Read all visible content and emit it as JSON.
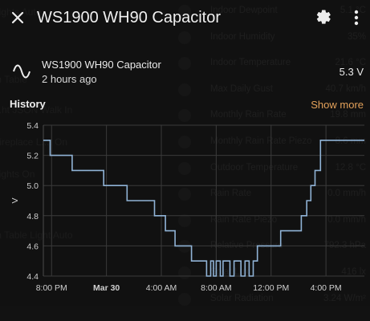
{
  "header": {
    "title": "WS1900 WH90 Capacitor"
  },
  "entity": {
    "name": "WS1900 WH90 Capacitor",
    "last_changed": "2 hours ago",
    "state": "5.3 V"
  },
  "history": {
    "label": "History",
    "show_more": "Show more"
  },
  "background": {
    "left_items": [
      {
        "label": "Lights Auto"
      },
      {
        "label": "m Table"
      },
      {
        "label": "...ht JSON Walk In"
      },
      {
        "label": "Fireplace L...t On"
      },
      {
        "label": "Lights On"
      },
      {
        "label": "m Table Light Auto"
      }
    ],
    "right_items": [
      {
        "name": "Indoor Dewpoint",
        "value": "5.1 °C"
      },
      {
        "name": "Indoor Humidity",
        "value": "35%"
      },
      {
        "name": "Indoor Temperature",
        "value": "21.6 °C"
      },
      {
        "name": "Max Daily Gust",
        "value": "40.7 km/h"
      },
      {
        "name": "Monthly Rain Rate",
        "value": "19.8 mm"
      },
      {
        "name": "Monthly Rain Rate Piezo",
        "value": "8.6 mm"
      },
      {
        "name": "Outdoor Temperature",
        "value": "12.8 °C"
      },
      {
        "name": "Rain Rate",
        "value": "0.0 mm/h"
      },
      {
        "name": "Rain Rate Piezo",
        "value": "0.0 mm/h"
      },
      {
        "name": "Relative Pressure",
        "value": "792.3 hPa"
      },
      {
        "name": "Solar Lux",
        "value": "416 lx"
      },
      {
        "name": "Solar Radiation",
        "value": "3.24 W/m²"
      }
    ]
  },
  "chart_data": {
    "type": "line",
    "title": "",
    "xlabel": "",
    "ylabel": "V",
    "ylim": [
      4.4,
      5.4
    ],
    "y_ticks": [
      "4.4",
      "4.6",
      "4.8",
      "5.0",
      "5.2",
      "5.4"
    ],
    "x_ticks": [
      "8:00 PM",
      "Mar 30",
      "4:00 AM",
      "8:00 AM",
      "12:00 PM",
      "4:00 PM"
    ],
    "x_ticks_hours": [
      0,
      4,
      8,
      12,
      16,
      20
    ],
    "x_range_hours": [
      -0.6,
      22.8
    ],
    "grid": true,
    "color": "#90b3d6",
    "series": [
      {
        "x_hours": [
          -0.6,
          -0.1,
          -0.1,
          1.5,
          1.5,
          3.8,
          3.8,
          5.5,
          5.5,
          7.5,
          7.5,
          8.3,
          8.3,
          9.0,
          9.0,
          10.2,
          10.2,
          11.3,
          11.3,
          11.6,
          11.6,
          11.8,
          11.8,
          12.0,
          12.0,
          12.3,
          12.3,
          12.5,
          12.5,
          13.0,
          13.0,
          13.3,
          13.3,
          13.8,
          13.8,
          14.1,
          14.1,
          14.4,
          14.4,
          14.7,
          14.7,
          15.0,
          15.0,
          16.7,
          16.7,
          18.2,
          18.2,
          18.6,
          18.6,
          18.9,
          18.9,
          19.2,
          19.2,
          19.6,
          19.6,
          22.8
        ],
        "values": [
          5.3,
          5.3,
          5.2,
          5.2,
          5.1,
          5.1,
          5.0,
          5.0,
          4.9,
          4.9,
          4.8,
          4.8,
          4.7,
          4.7,
          4.6,
          4.6,
          4.5,
          4.5,
          4.4,
          4.4,
          4.5,
          4.5,
          4.4,
          4.4,
          4.5,
          4.5,
          4.4,
          4.4,
          4.5,
          4.5,
          4.4,
          4.4,
          4.5,
          4.5,
          4.4,
          4.4,
          4.5,
          4.5,
          4.4,
          4.4,
          4.5,
          4.5,
          4.6,
          4.6,
          4.7,
          4.7,
          4.8,
          4.8,
          4.9,
          4.9,
          5.0,
          5.0,
          5.1,
          5.1,
          5.3,
          5.3
        ]
      }
    ]
  }
}
